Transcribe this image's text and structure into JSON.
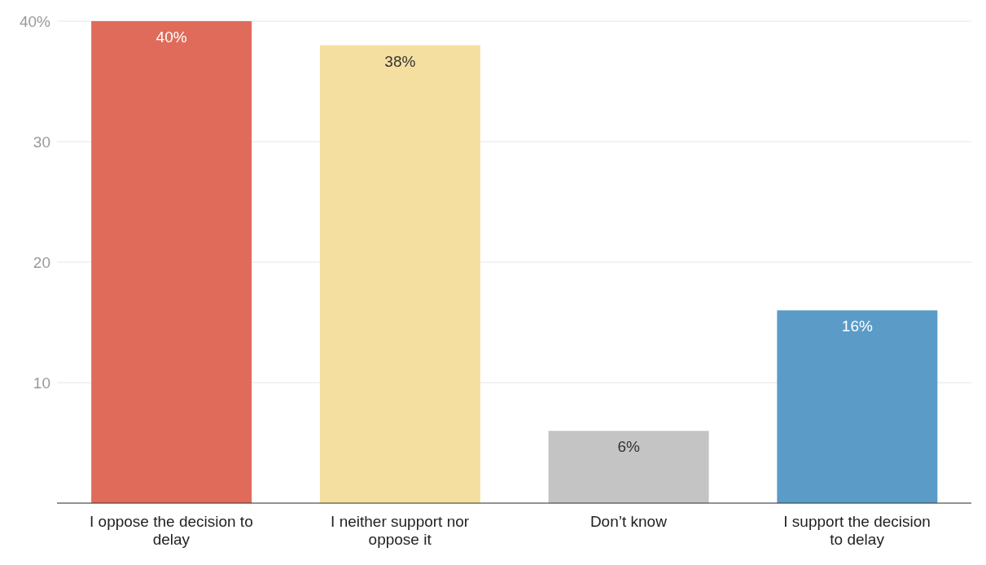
{
  "chart_data": {
    "type": "bar",
    "categories": [
      "I oppose the decision to delay",
      "I neither support nor oppose it",
      "Don’t know",
      "I support the decision to delay"
    ],
    "values": [
      40,
      38,
      6,
      16
    ],
    "colors": [
      "#e06b5a",
      "#f5dfa0",
      "#c4c4c4",
      "#5a9bc8"
    ],
    "value_labels": [
      "40%",
      "38%",
      "6%",
      "16%"
    ],
    "ylim": [
      0,
      40
    ],
    "yticks": [
      10,
      20,
      30,
      {
        "value": 40,
        "label": "40%"
      }
    ],
    "grid": "y"
  }
}
